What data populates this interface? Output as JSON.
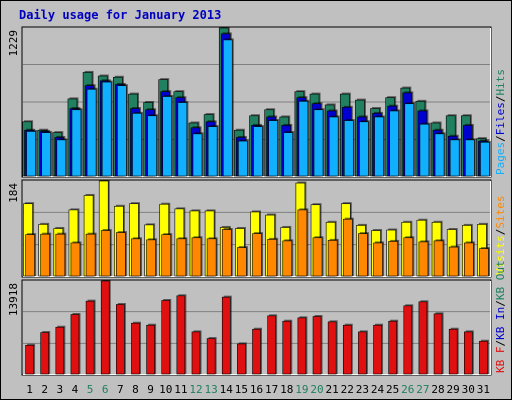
{
  "chart_data": {
    "type": "bar",
    "title": "Daily usage for January 2013",
    "categories": [
      "1",
      "2",
      "3",
      "4",
      "5",
      "6",
      "7",
      "8",
      "9",
      "10",
      "11",
      "12",
      "13",
      "14",
      "15",
      "16",
      "17",
      "18",
      "19",
      "20",
      "21",
      "22",
      "23",
      "24",
      "25",
      "26",
      "27",
      "28",
      "29",
      "30",
      "31"
    ],
    "weekend_days": [
      "5",
      "6",
      "12",
      "13",
      "19",
      "20",
      "26",
      "27"
    ],
    "colors": {
      "background": "#c0c0c0",
      "frame": "#ffffff",
      "title": "#0000c0",
      "hits": "#208060",
      "files": "#0000d0",
      "pages": "#10b0ff",
      "visits": "#ffff00",
      "sites": "#ff8800",
      "kbf": "#e01010",
      "weekend": "#208060",
      "weekday": "#000000",
      "grid": "#808080"
    },
    "panels": [
      {
        "id": "hits_files_pages",
        "ymax_label": "1229",
        "ylim": [
          0,
          1229
        ],
        "legend": [
          {
            "text": "Pages",
            "color": "#10b0ff"
          },
          {
            "text": "/",
            "color": "#000000"
          },
          {
            "text": "Files",
            "color": "#0000d0"
          },
          {
            "text": "/",
            "color": "#000000"
          },
          {
            "text": "Hits",
            "color": "#208060"
          }
        ],
        "series": [
          {
            "name": "Hits",
            "color": "#208060",
            "values": [
              450,
              380,
              360,
              640,
              860,
              830,
              820,
              680,
              610,
              800,
              700,
              440,
              510,
              1229,
              380,
              500,
              550,
              490,
              700,
              680,
              590,
              680,
              630,
              560,
              650,
              730,
              620,
              440,
              500,
              500,
              310
            ]
          },
          {
            "name": "Files",
            "color": "#0000d0",
            "values": [
              380,
              370,
              320,
              560,
              750,
              790,
              760,
              560,
              550,
              700,
              650,
              400,
              450,
              1180,
              320,
              420,
              490,
              420,
              650,
              600,
              540,
              570,
              490,
              520,
              580,
              690,
              540,
              380,
              330,
              420,
              290
            ]
          },
          {
            "name": "Pages",
            "color": "#10b0ff",
            "values": [
              370,
              360,
              300,
              550,
              720,
              780,
              750,
              520,
              500,
              660,
              610,
              350,
              410,
              1130,
              290,
              410,
              460,
              360,
              620,
              550,
              490,
              460,
              450,
              490,
              540,
              600,
              430,
              350,
              300,
              300,
              280
            ]
          }
        ]
      },
      {
        "id": "visits_sites",
        "ymax_label": "184",
        "ylim": [
          0,
          184
        ],
        "legend": [
          {
            "text": "Visits",
            "color": "#ffff00"
          },
          {
            "text": "/",
            "color": "#000000"
          },
          {
            "text": "Sites",
            "color": "#ff8800"
          }
        ],
        "series": [
          {
            "name": "Visits",
            "color": "#ffff00",
            "values": [
              140,
              100,
              92,
              128,
              156,
              184,
              135,
              140,
              99,
              139,
              130,
              126,
              126,
              94,
              92,
              124,
              118,
              94,
              180,
              138,
              104,
              140,
              98,
              88,
              89,
              104,
              108,
              104,
              90,
              98,
              100
            ]
          },
          {
            "name": "Sites",
            "color": "#ff8800",
            "values": [
              80,
              81,
              81,
              64,
              81,
              88,
              84,
              72,
              70,
              80,
              72,
              74,
              72,
              90,
              55,
              82,
              71,
              68,
              128,
              74,
              69,
              110,
              82,
              64,
              67,
              74,
              66,
              68,
              56,
              64,
              53
            ]
          }
        ]
      },
      {
        "id": "kbf",
        "ymax_label": "13918",
        "ylim": [
          0,
          13918
        ],
        "legend": [
          {
            "text": "KB F",
            "color": "#e01010"
          },
          {
            "text": "/",
            "color": "#000000"
          },
          {
            "text": "KB In",
            "color": "#0000d0"
          },
          {
            "text": "/",
            "color": "#000000"
          },
          {
            "text": "KB Out",
            "color": "#208060"
          }
        ],
        "series": [
          {
            "name": "KB F",
            "color": "#e01010",
            "values": [
              4300,
              6200,
              7000,
              8900,
              10900,
              13918,
              10400,
              7600,
              7300,
              11000,
              11700,
              6300,
              5300,
              11500,
              4500,
              6700,
              8700,
              7900,
              8400,
              8600,
              7800,
              7300,
              6300,
              7300,
              7900,
              10200,
              10800,
              9000,
              6700,
              6300,
              4900
            ]
          }
        ]
      }
    ]
  }
}
